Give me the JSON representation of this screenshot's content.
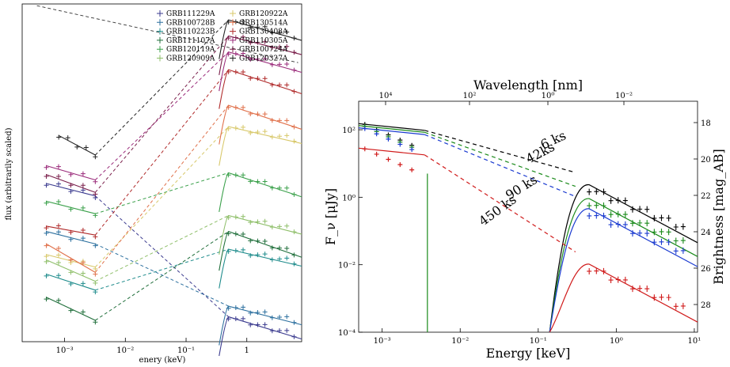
{
  "chart_data": [
    {
      "type": "line",
      "xlabel": "enery (keV)",
      "ylabel": "flux (arbitrarily scaled)",
      "x_scale": "log",
      "xlim": [
        0.0002,
        8
      ],
      "x_ticks": [
        {
          "v": 0.001,
          "label": "10⁻³"
        },
        {
          "v": 0.01,
          "label": "10⁻²"
        },
        {
          "v": 0.1,
          "label": "10⁻¹"
        },
        {
          "v": 1,
          "label": "1"
        }
      ],
      "legend_placement": "top-right",
      "series": [
        {
          "name": "GRB111229A",
          "color": "#3b3b8f",
          "level": 8.0,
          "opt_x": [
            0.0005,
            0.0032
          ],
          "opt_y": [
            8.9,
            8.2
          ],
          "xr_x": [
            0.5,
            6
          ],
          "xr_y": [
            1.4,
            0.4
          ]
        },
        {
          "name": "GRB100728B",
          "color": "#2b6f9e",
          "level": 3.0,
          "opt_x": [
            0.0005,
            0.0032
          ],
          "opt_y": [
            6.2,
            5.5
          ],
          "xr_x": [
            0.5,
            6
          ],
          "xr_y": [
            2.0,
            1.2
          ]
        },
        {
          "name": "GRB110223B",
          "color": "#1f8c8c",
          "level": 6.0,
          "opt_x": [
            0.0005,
            0.0032
          ],
          "opt_y": [
            3.8,
            2.9
          ],
          "xr_x": [
            0.5,
            6
          ],
          "xr_y": [
            5.2,
            4.5
          ]
        },
        {
          "name": "GRB111107A",
          "color": "#1f6e3a",
          "level": 8.0,
          "opt_x": [
            0.0005,
            0.0032
          ],
          "opt_y": [
            2.5,
            1.2
          ],
          "xr_x": [
            0.5,
            6
          ],
          "xr_y": [
            6.2,
            5.0
          ]
        },
        {
          "name": "GRB120119A",
          "color": "#3aa04a",
          "level": 9.0,
          "opt_x": [
            0.0005,
            0.0032
          ],
          "opt_y": [
            7.9,
            7.2
          ],
          "xr_x": [
            0.5,
            6
          ],
          "xr_y": [
            9.5,
            8.4
          ]
        },
        {
          "name": "GRB120909A",
          "color": "#8fbf6a",
          "level": 6.5,
          "opt_x": [
            0.0005,
            0.0032
          ],
          "opt_y": [
            4.6,
            3.4
          ],
          "xr_x": [
            0.5,
            6
          ],
          "xr_y": [
            7.1,
            6.3
          ]
        },
        {
          "name": "GRB120922A",
          "color": "#d8c86a",
          "level": 7.0,
          "opt_x": [
            0.0005,
            0.0032
          ],
          "opt_y": [
            4.9,
            4.2
          ],
          "xr_x": [
            0.5,
            6
          ],
          "xr_y": [
            12.1,
            11.4
          ]
        },
        {
          "name": "GRB130514A",
          "color": "#e0704a",
          "level": 10.0,
          "opt_x": [
            0.0005,
            0.0032
          ],
          "opt_y": [
            5.5,
            3.9
          ],
          "xr_x": [
            0.5,
            6
          ],
          "xr_y": [
            13.3,
            12.2
          ]
        },
        {
          "name": "GRB130408A",
          "color": "#b02a2a",
          "level": 11.0,
          "opt_x": [
            0.0005,
            0.0032
          ],
          "opt_y": [
            6.5,
            6.0
          ],
          "xr_x": [
            0.5,
            6
          ],
          "xr_y": [
            15.3,
            14.2
          ]
        },
        {
          "name": "GRB110305A",
          "color": "#9a2a7a",
          "level": 12.0,
          "opt_x": [
            0.0005,
            0.0032
          ],
          "opt_y": [
            9.9,
            9.1
          ],
          "xr_x": [
            0.5,
            6
          ],
          "xr_y": [
            16.3,
            15.4
          ]
        },
        {
          "name": "GRB100724A",
          "color": "#7a1e4a",
          "level": 13.0,
          "opt_x": [
            0.0005,
            0.0032
          ],
          "opt_y": [
            9.4,
            8.4
          ],
          "xr_x": [
            0.5,
            6
          ],
          "xr_y": [
            17.2,
            16.4
          ]
        },
        {
          "name": "GRB120327A",
          "color": "#222222",
          "level": 14.0,
          "opt_x": [
            0.0008,
            0.0032
          ],
          "opt_y": [
            11.6,
            10.5
          ],
          "xr_x": [
            0.5,
            6
          ],
          "xr_y": [
            18.1,
            17.2
          ]
        }
      ]
    },
    {
      "type": "line",
      "xlabel": "Energy [keV]",
      "ylabel": "F_ν [μJy]",
      "top_xlabel": "Wavelength [nm]",
      "right_ylabel": "Brightness [mag_AB]",
      "x_scale": "log",
      "y_scale": "log",
      "xlim": [
        0.0005,
        11
      ],
      "ylim": [
        0.0001,
        700
      ],
      "x_ticks": [
        {
          "v": 0.001,
          "label": "10⁻³"
        },
        {
          "v": 0.01,
          "label": "10⁻²"
        },
        {
          "v": 0.1,
          "label": "10⁻¹"
        },
        {
          "v": 1,
          "label": "10⁰"
        },
        {
          "v": 10,
          "label": "10¹"
        }
      ],
      "y_ticks": [
        {
          "v": 0.0001,
          "label": "10⁻⁴"
        },
        {
          "v": 0.01,
          "label": "10⁻²"
        },
        {
          "v": 1,
          "label": "10⁰"
        },
        {
          "v": 100,
          "label": "10²"
        }
      ],
      "top_ticks": [
        {
          "keV": 0.0001,
          "label": "10⁴"
        },
        {
          "keV": 0.01,
          "label": "10²"
        },
        {
          "keV": 1,
          "label": "10⁰"
        },
        {
          "keV": 100,
          "label": "10⁻²"
        }
      ],
      "right_ticks": [
        "18",
        "20",
        "22",
        "24",
        "26",
        "28"
      ],
      "series": [
        {
          "name": "6 ks",
          "color": "#000000",
          "opt_y": 80,
          "xr_y": 1.8
        },
        {
          "name": "42ks",
          "color": "#1a8a1a",
          "opt_y": 70,
          "xr_y": 0.7
        },
        {
          "name": "90 ks",
          "color": "#1a3ad0",
          "opt_y": 60,
          "xr_y": 0.35
        },
        {
          "name": "450 ks",
          "color": "#d01a1a",
          "opt_y": 15,
          "xr_y": 0.008
        }
      ],
      "annotations": [
        "6 ks",
        "42ks",
        "90 ks",
        "450 ks"
      ]
    }
  ]
}
